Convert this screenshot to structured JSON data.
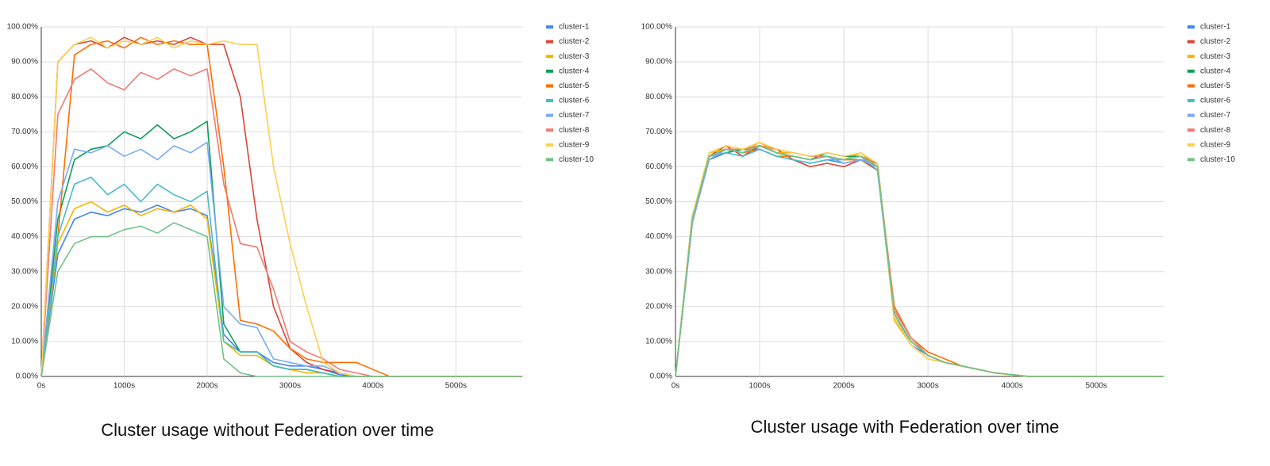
{
  "chart_data": [
    {
      "type": "line",
      "title": "Cluster usage without Federation over time",
      "x": [
        0,
        200,
        400,
        600,
        800,
        1000,
        1200,
        1400,
        1600,
        1800,
        2000,
        2200,
        2400,
        2600,
        2800,
        3000,
        3200,
        3400,
        3600,
        3800,
        4000,
        4200,
        4400,
        4600,
        4800,
        5000,
        5200,
        5400,
        5600,
        5800
      ],
      "xlim": [
        0,
        5800
      ],
      "xticks": [
        {
          "value": 0,
          "label": "0s"
        },
        {
          "value": 1000,
          "label": "1000s"
        },
        {
          "value": 2000,
          "label": "2000s"
        },
        {
          "value": 3000,
          "label": "3000s"
        },
        {
          "value": 4000,
          "label": "4000s"
        },
        {
          "value": 5000,
          "label": "5000s"
        }
      ],
      "ylim": [
        0,
        100
      ],
      "yticks": [
        {
          "value": 0,
          "label": "0.00%"
        },
        {
          "value": 10,
          "label": "10.00%"
        },
        {
          "value": 20,
          "label": "20.00%"
        },
        {
          "value": 30,
          "label": "30.00%"
        },
        {
          "value": 40,
          "label": "40.00%"
        },
        {
          "value": 50,
          "label": "50.00%"
        },
        {
          "value": 60,
          "label": "60.00%"
        },
        {
          "value": 70,
          "label": "70.00%"
        },
        {
          "value": 80,
          "label": "80.00%"
        },
        {
          "value": 90,
          "label": "90.00%"
        },
        {
          "value": 100,
          "label": "100.00%"
        }
      ],
      "grid": true,
      "legend": "right",
      "series": [
        {
          "name": "cluster-1",
          "color": "#4285f4",
          "values": [
            0,
            35,
            45,
            47,
            46,
            48,
            47,
            49,
            47,
            48,
            46,
            12,
            7,
            7,
            4,
            3,
            3,
            2,
            0.5,
            0,
            0,
            0,
            0,
            0,
            0,
            0,
            0,
            0,
            0,
            0
          ]
        },
        {
          "name": "cluster-2",
          "color": "#db4437",
          "values": [
            0,
            90,
            95,
            96,
            94,
            97,
            95,
            96,
            95,
            97,
            95,
            95,
            80,
            45,
            20,
            8,
            4,
            2,
            1,
            0,
            0,
            0,
            0,
            0,
            0,
            0,
            0,
            0,
            0,
            0
          ]
        },
        {
          "name": "cluster-3",
          "color": "#f4b400",
          "values": [
            0,
            38,
            48,
            50,
            47,
            49,
            46,
            48,
            47,
            49,
            45,
            10,
            6,
            6,
            3,
            2,
            1,
            1,
            0,
            0,
            0,
            0,
            0,
            0,
            0,
            0,
            0,
            0,
            0,
            0
          ]
        },
        {
          "name": "cluster-4",
          "color": "#0f9d58",
          "values": [
            0,
            45,
            62,
            65,
            66,
            70,
            68,
            72,
            68,
            70,
            73,
            15,
            7,
            7,
            3,
            2,
            2,
            1,
            0,
            0,
            0,
            0,
            0,
            0,
            0,
            0,
            0,
            0,
            0,
            0
          ]
        },
        {
          "name": "cluster-5",
          "color": "#ff6d01",
          "values": [
            0,
            40,
            92,
            95,
            96,
            94,
            97,
            95,
            96,
            95,
            95,
            60,
            16,
            15,
            13,
            8,
            5,
            4,
            4,
            4,
            2,
            0,
            0,
            0,
            0,
            0,
            0,
            0,
            0,
            0
          ]
        },
        {
          "name": "cluster-6",
          "color": "#46bdc6",
          "values": [
            0,
            40,
            55,
            57,
            52,
            55,
            50,
            55,
            52,
            50,
            53,
            10,
            7,
            7,
            3,
            2,
            2,
            1,
            0,
            0,
            0,
            0,
            0,
            0,
            0,
            0,
            0,
            0,
            0,
            0
          ]
        },
        {
          "name": "cluster-7",
          "color": "#7baaf7",
          "values": [
            0,
            50,
            65,
            64,
            66,
            63,
            65,
            62,
            66,
            64,
            67,
            20,
            15,
            14,
            5,
            4,
            3,
            3,
            1,
            0,
            0,
            0,
            0,
            0,
            0,
            0,
            0,
            0,
            0,
            0
          ]
        },
        {
          "name": "cluster-8",
          "color": "#f07b72",
          "values": [
            0,
            75,
            85,
            88,
            84,
            82,
            87,
            85,
            88,
            86,
            88,
            55,
            38,
            37,
            25,
            10,
            7,
            5,
            2,
            1,
            0,
            0,
            0,
            0,
            0,
            0,
            0,
            0,
            0,
            0
          ]
        },
        {
          "name": "cluster-9",
          "color": "#fcd04f",
          "values": [
            0,
            90,
            95,
            97,
            94,
            96,
            95,
            97,
            94,
            96,
            95,
            96,
            95,
            95,
            60,
            38,
            20,
            4,
            1,
            0,
            0,
            0,
            0,
            0,
            0,
            0,
            0,
            0,
            0,
            0
          ]
        },
        {
          "name": "cluster-10",
          "color": "#71c287",
          "values": [
            0,
            30,
            38,
            40,
            40,
            42,
            43,
            41,
            44,
            42,
            40,
            5,
            1,
            0,
            0,
            0,
            0,
            0,
            0,
            0,
            0,
            0,
            0,
            0,
            0,
            0,
            0,
            0,
            0,
            0
          ]
        }
      ]
    },
    {
      "type": "line",
      "title": "Cluster usage with Federation over time",
      "x": [
        0,
        200,
        400,
        600,
        800,
        1000,
        1200,
        1400,
        1600,
        1800,
        2000,
        2200,
        2400,
        2600,
        2800,
        3000,
        3200,
        3400,
        3600,
        3800,
        4000,
        4200,
        4400,
        4600,
        4800,
        5000,
        5200,
        5400,
        5600,
        5800
      ],
      "xlim": [
        0,
        5800
      ],
      "xticks": [
        {
          "value": 0,
          "label": "0s"
        },
        {
          "value": 1000,
          "label": "1000s"
        },
        {
          "value": 2000,
          "label": "2000s"
        },
        {
          "value": 3000,
          "label": "3000s"
        },
        {
          "value": 4000,
          "label": "4000s"
        },
        {
          "value": 5000,
          "label": "5000s"
        }
      ],
      "ylim": [
        0,
        100
      ],
      "yticks": [
        {
          "value": 0,
          "label": "0.00%"
        },
        {
          "value": 10,
          "label": "10.00%"
        },
        {
          "value": 20,
          "label": "20.00%"
        },
        {
          "value": 30,
          "label": "30.00%"
        },
        {
          "value": 40,
          "label": "40.00%"
        },
        {
          "value": 50,
          "label": "50.00%"
        },
        {
          "value": 60,
          "label": "60.00%"
        },
        {
          "value": 70,
          "label": "70.00%"
        },
        {
          "value": 80,
          "label": "80.00%"
        },
        {
          "value": 90,
          "label": "90.00%"
        },
        {
          "value": 100,
          "label": "100.00%"
        }
      ],
      "grid": true,
      "legend": "right",
      "series": [
        {
          "name": "cluster-1",
          "color": "#4285f4",
          "values": [
            0,
            44,
            62,
            64,
            65,
            65,
            63,
            62,
            61,
            62,
            61,
            62,
            61,
            17,
            9,
            6,
            4,
            3,
            2,
            1,
            0.5,
            0,
            0,
            0,
            0,
            0,
            0,
            0,
            0,
            0
          ]
        },
        {
          "name": "cluster-2",
          "color": "#db4437",
          "values": [
            0,
            46,
            63,
            66,
            63,
            66,
            65,
            62,
            60,
            61,
            60,
            62,
            59,
            19,
            11,
            6,
            4,
            3,
            2,
            1,
            0.5,
            0,
            0,
            0,
            0,
            0,
            0,
            0,
            0,
            0
          ]
        },
        {
          "name": "cluster-3",
          "color": "#f4b400",
          "values": [
            0,
            45,
            64,
            65,
            64,
            67,
            64,
            64,
            63,
            63,
            62,
            64,
            60,
            16,
            9,
            5,
            4,
            3,
            2,
            1,
            0.4,
            0,
            0,
            0,
            0,
            0,
            0,
            0,
            0,
            0
          ]
        },
        {
          "name": "cluster-4",
          "color": "#0f9d58",
          "values": [
            0,
            44,
            63,
            64,
            65,
            66,
            64,
            63,
            62,
            64,
            63,
            63,
            61,
            18,
            10,
            6,
            4,
            3,
            2,
            1,
            0.5,
            0,
            0,
            0,
            0,
            0,
            0,
            0,
            0,
            0
          ]
        },
        {
          "name": "cluster-5",
          "color": "#ff6d01",
          "values": [
            0,
            46,
            62,
            65,
            64,
            65,
            63,
            63,
            62,
            63,
            62,
            62,
            60,
            20,
            11,
            7,
            5,
            3,
            2,
            1,
            0.5,
            0,
            0,
            0,
            0,
            0,
            0,
            0,
            0,
            0
          ]
        },
        {
          "name": "cluster-6",
          "color": "#46bdc6",
          "values": [
            0,
            45,
            63,
            64,
            63,
            65,
            63,
            62,
            61,
            62,
            62,
            63,
            59,
            17,
            10,
            6,
            4,
            3,
            2,
            1,
            0.5,
            0,
            0,
            0,
            0,
            0,
            0,
            0,
            0,
            0
          ]
        },
        {
          "name": "cluster-7",
          "color": "#7baaf7",
          "values": [
            0,
            44,
            62,
            65,
            64,
            66,
            64,
            63,
            62,
            63,
            61,
            62,
            60,
            18,
            10,
            6,
            4,
            3,
            2,
            1,
            0.5,
            0,
            0,
            0,
            0,
            0,
            0,
            0,
            0,
            0
          ]
        },
        {
          "name": "cluster-8",
          "color": "#f07b72",
          "values": [
            0,
            45,
            63,
            65,
            65,
            66,
            65,
            64,
            63,
            63,
            62,
            63,
            61,
            19,
            11,
            6,
            4,
            3,
            2,
            1,
            0.5,
            0,
            0,
            0,
            0,
            0,
            0,
            0,
            0,
            0
          ]
        },
        {
          "name": "cluster-9",
          "color": "#fcd04f",
          "values": [
            0,
            46,
            64,
            66,
            65,
            67,
            65,
            64,
            63,
            64,
            63,
            64,
            61,
            17,
            9,
            5,
            4,
            3,
            2,
            1,
            0.4,
            0,
            0,
            0,
            0,
            0,
            0,
            0,
            0,
            0
          ]
        },
        {
          "name": "cluster-10",
          "color": "#71c287",
          "values": [
            0,
            45,
            63,
            65,
            64,
            66,
            64,
            63,
            62,
            63,
            62,
            63,
            60,
            18,
            10,
            6,
            4,
            3,
            2,
            1,
            0.5,
            0,
            0,
            0,
            0,
            0,
            0,
            0,
            0,
            0
          ]
        }
      ]
    }
  ]
}
